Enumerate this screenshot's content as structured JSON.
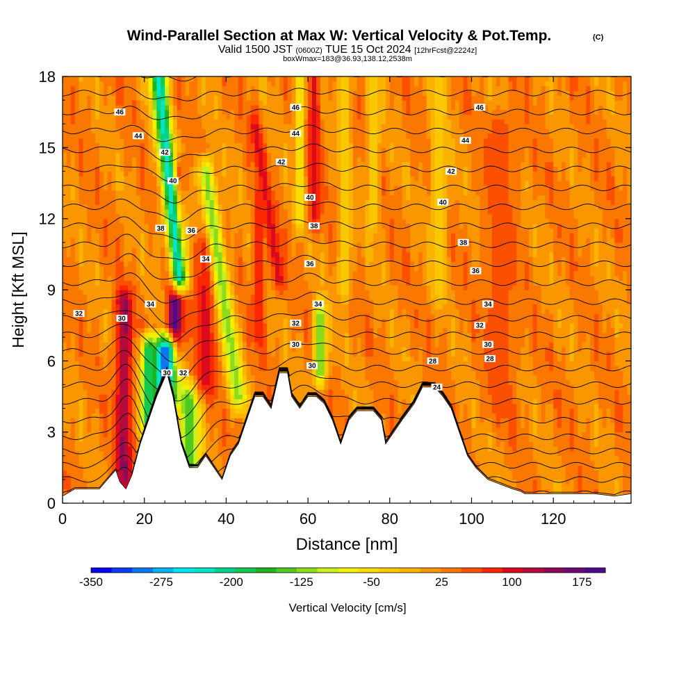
{
  "chart_data": {
    "type": "heatmap",
    "title": {
      "main": "Wind-Parallel Section at Max W: Vertical Velocity & Pot.Temp.",
      "mark": "(C)",
      "valid_prefix": "Valid 1500 JST",
      "valid_utc": "(0600Z)",
      "valid_date": "TUE 15 Oct 2024",
      "forecast": "[12hrFcst@2224z]",
      "box": "boxWmax=183@36.93,138.12,2538m"
    },
    "xlabel": "Distance [nm]",
    "ylabel": "Height [Kft MSL]",
    "xlim": [
      0,
      139
    ],
    "ylim": [
      0,
      18
    ],
    "xticks": [
      0,
      20,
      40,
      60,
      80,
      100,
      120
    ],
    "yticks": [
      0,
      3,
      6,
      9,
      12,
      15,
      18
    ],
    "colorbar": {
      "label": "Vertical Velocity [cm/s]",
      "ticks": [
        -350,
        -275,
        -200,
        -125,
        -50,
        25,
        100,
        175
      ],
      "range": [
        -350,
        200
      ],
      "colors": [
        "#0000f5",
        "#0a3cf5",
        "#0a78f0",
        "#00b4f0",
        "#00e6f0",
        "#00e6c8",
        "#00d28c",
        "#14c850",
        "#1eb41e",
        "#50c81e",
        "#8cdc1e",
        "#c8f01e",
        "#f0f000",
        "#fadc00",
        "#fac800",
        "#fab400",
        "#fa9600",
        "#fa7800",
        "#fa5000",
        "#fa2800",
        "#dc0a1e",
        "#b40a3c",
        "#8c0a5a",
        "#6e0a78",
        "#500a8c"
      ]
    },
    "velocity_field": {
      "background": 25,
      "features": [
        {
          "x": 15,
          "z0": 1.0,
          "z1": 8.5,
          "w": 2.0,
          "value": 140
        },
        {
          "x": 27.5,
          "z0": 6.5,
          "z1": 14.0,
          "w": 1.8,
          "value": 195
        },
        {
          "x": 25.5,
          "z0": 13.0,
          "z1": 17.0,
          "w": 1.8,
          "value": 110
        },
        {
          "x": 28.5,
          "z0": 9.5,
          "z1": 18.0,
          "w": 2.2,
          "value": -230,
          "top_shift": -5
        },
        {
          "x": 31,
          "z0": 0.5,
          "z1": 4.5,
          "w": 2.5,
          "value": -150
        },
        {
          "x": 25,
          "z0": 4.5,
          "z1": 6.5,
          "w": 3.0,
          "value": -300
        },
        {
          "x": 21,
          "z0": 3.5,
          "z1": 6.5,
          "w": 1.8,
          "value": -200
        },
        {
          "x": 35,
          "z0": 5.0,
          "z1": 11.0,
          "w": 2.5,
          "value": 95
        },
        {
          "x": 43,
          "z0": 4.5,
          "z1": 14.0,
          "w": 2.0,
          "value": -120,
          "top_shift": -8
        },
        {
          "x": 53,
          "z0": 9.5,
          "z1": 16.0,
          "w": 1.5,
          "value": 100,
          "top_shift": -6
        },
        {
          "x": 48,
          "z0": 7.0,
          "z1": 13.0,
          "w": 1.4,
          "value": 80
        },
        {
          "x": 61.5,
          "z0": 12.0,
          "z1": 18.0,
          "w": 1.5,
          "value": 95
        },
        {
          "x": 63,
          "z0": 5.5,
          "z1": 8.0,
          "w": 1.5,
          "value": -130
        },
        {
          "x": 58,
          "z0": 12.0,
          "z1": 18.0,
          "w": 1.2,
          "value": -60
        },
        {
          "x": 69,
          "z0": 9.0,
          "z1": 18.0,
          "w": 1.5,
          "value": -40
        },
        {
          "x": 76,
          "z0": 12.0,
          "z1": 18.0,
          "w": 1.5,
          "value": -40
        },
        {
          "x": 92,
          "z0": 9.0,
          "z1": 18.0,
          "w": 2.0,
          "value": -35
        },
        {
          "x": 107,
          "z0": 4.0,
          "z1": 16.0,
          "w": 4.0,
          "value": 55
        }
      ]
    },
    "terrain": [
      [
        0,
        0.3
      ],
      [
        3,
        0.6
      ],
      [
        6,
        0.6
      ],
      [
        9,
        0.6
      ],
      [
        11,
        1.0
      ],
      [
        13,
        1.4
      ],
      [
        14,
        0.9
      ],
      [
        15.5,
        0.6
      ],
      [
        17,
        1.2
      ],
      [
        19,
        2.5
      ],
      [
        21,
        3.5
      ],
      [
        23,
        4.5
      ],
      [
        25.5,
        5.5
      ],
      [
        27,
        4.5
      ],
      [
        29,
        2.5
      ],
      [
        31,
        1.5
      ],
      [
        33,
        1.5
      ],
      [
        35,
        2.0
      ],
      [
        37,
        1.5
      ],
      [
        39,
        1.0
      ],
      [
        41,
        2.0
      ],
      [
        43,
        2.5
      ],
      [
        45,
        3.5
      ],
      [
        47,
        4.5
      ],
      [
        49,
        4.5
      ],
      [
        51,
        4.0
      ],
      [
        53,
        5.5
      ],
      [
        55,
        5.5
      ],
      [
        56,
        4.5
      ],
      [
        58,
        4.0
      ],
      [
        60,
        4.5
      ],
      [
        62,
        4.5
      ],
      [
        64,
        4.2
      ],
      [
        66,
        3.5
      ],
      [
        68,
        2.5
      ],
      [
        70,
        3.5
      ],
      [
        72,
        3.9
      ],
      [
        76,
        3.9
      ],
      [
        78,
        3.5
      ],
      [
        79,
        2.5
      ],
      [
        81,
        3.0
      ],
      [
        83,
        3.5
      ],
      [
        86,
        4.2
      ],
      [
        88,
        4.9
      ],
      [
        91,
        4.9
      ],
      [
        93,
        4.5
      ],
      [
        95,
        4.0
      ],
      [
        97,
        3.0
      ],
      [
        99,
        2.0
      ],
      [
        101,
        1.5
      ],
      [
        104,
        1.0
      ],
      [
        107,
        0.8
      ],
      [
        110,
        0.6
      ],
      [
        112,
        0.5
      ],
      [
        113,
        0.4
      ],
      [
        120,
        0.4
      ],
      [
        130,
        0.4
      ],
      [
        135,
        0.3
      ],
      [
        139,
        0.4
      ]
    ],
    "theta_lines": [
      [
        0.4,
        1.5
      ],
      [
        1.0,
        1.5
      ],
      [
        1.6,
        1.5
      ],
      [
        2.2,
        1.5
      ],
      [
        2.8,
        1.5
      ],
      [
        3.5,
        1.5
      ],
      [
        4.3,
        1.3
      ],
      [
        5.0,
        1.2
      ],
      [
        5.7,
        1.1
      ],
      [
        6.4,
        1.0
      ],
      [
        7.1,
        0.9
      ],
      [
        7.8,
        0.8
      ],
      [
        8.5,
        0.8
      ],
      [
        9.3,
        0.8
      ],
      [
        10.1,
        0.7
      ],
      [
        10.9,
        0.7
      ],
      [
        11.7,
        0.6
      ],
      [
        12.5,
        0.6
      ],
      [
        13.3,
        0.6
      ],
      [
        14.1,
        0.5
      ],
      [
        14.9,
        0.5
      ],
      [
        15.7,
        0.5
      ],
      [
        16.5,
        0.4
      ],
      [
        17.3,
        0.4
      ],
      [
        18.1,
        0.3
      ]
    ],
    "theta_labels": [
      {
        "text": "32",
        "x": 4,
        "z": 8.0
      },
      {
        "text": "30",
        "x": 14.5,
        "z": 7.8
      },
      {
        "text": "34",
        "x": 21.5,
        "z": 8.4
      },
      {
        "text": "38",
        "x": 24,
        "z": 11.6
      },
      {
        "text": "40",
        "x": 27,
        "z": 13.6
      },
      {
        "text": "42",
        "x": 25,
        "z": 14.8
      },
      {
        "text": "44",
        "x": 18.5,
        "z": 15.5
      },
      {
        "text": "46",
        "x": 14,
        "z": 16.5
      },
      {
        "text": "36",
        "x": 31.5,
        "z": 11.5
      },
      {
        "text": "34",
        "x": 35,
        "z": 10.3
      },
      {
        "text": "30",
        "x": 25.5,
        "z": 5.5
      },
      {
        "text": "32",
        "x": 29.5,
        "z": 5.5
      },
      {
        "text": "46",
        "x": 57,
        "z": 16.7
      },
      {
        "text": "44",
        "x": 57,
        "z": 15.6
      },
      {
        "text": "42",
        "x": 53.5,
        "z": 14.4
      },
      {
        "text": "40",
        "x": 60.5,
        "z": 12.9
      },
      {
        "text": "38",
        "x": 61.5,
        "z": 11.7
      },
      {
        "text": "36",
        "x": 60.5,
        "z": 10.1
      },
      {
        "text": "34",
        "x": 62.5,
        "z": 8.4
      },
      {
        "text": "32",
        "x": 57,
        "z": 7.6
      },
      {
        "text": "30",
        "x": 57,
        "z": 6.7
      },
      {
        "text": "30",
        "x": 61,
        "z": 5.8
      },
      {
        "text": "46",
        "x": 102,
        "z": 16.7
      },
      {
        "text": "44",
        "x": 98.5,
        "z": 15.3
      },
      {
        "text": "42",
        "x": 95,
        "z": 14.0
      },
      {
        "text": "40",
        "x": 93,
        "z": 12.7
      },
      {
        "text": "38",
        "x": 98,
        "z": 11.0
      },
      {
        "text": "36",
        "x": 101,
        "z": 9.8
      },
      {
        "text": "34",
        "x": 104,
        "z": 8.4
      },
      {
        "text": "32",
        "x": 102,
        "z": 7.5
      },
      {
        "text": "30",
        "x": 104,
        "z": 6.7
      },
      {
        "text": "28",
        "x": 104.5,
        "z": 6.1
      },
      {
        "text": "28",
        "x": 90.5,
        "z": 6.0
      },
      {
        "text": "24",
        "x": 91.5,
        "z": 4.9
      }
    ]
  }
}
